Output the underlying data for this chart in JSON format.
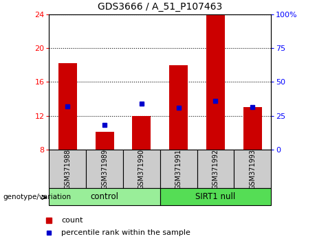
{
  "title": "GDS3666 / A_51_P107463",
  "samples": [
    "GSM371988",
    "GSM371989",
    "GSM371990",
    "GSM371991",
    "GSM371992",
    "GSM371993"
  ],
  "count_values": [
    18.2,
    10.1,
    12.0,
    18.0,
    23.9,
    13.0
  ],
  "percentile_values": [
    32.0,
    18.0,
    34.0,
    31.0,
    36.0,
    31.5
  ],
  "ylim_left": [
    8,
    24
  ],
  "ylim_right": [
    0,
    100
  ],
  "left_ticks": [
    8,
    12,
    16,
    20,
    24
  ],
  "right_ticks": [
    0,
    25,
    50,
    75,
    100
  ],
  "right_tick_labels": [
    "0",
    "25",
    "50",
    "75",
    "100%"
  ],
  "bar_color": "#cc0000",
  "dot_color": "#0000cc",
  "group1_label": "control",
  "group2_label": "SIRT1 null",
  "group_annotation": "genotype/variation",
  "legend_count": "count",
  "legend_percentile": "percentile rank within the sample",
  "group1_color": "#99ee99",
  "group2_color": "#55dd55",
  "sample_bg_color": "#cccccc",
  "bar_bottom": 8,
  "bar_width": 0.5,
  "fig_width": 4.61,
  "fig_height": 3.54
}
